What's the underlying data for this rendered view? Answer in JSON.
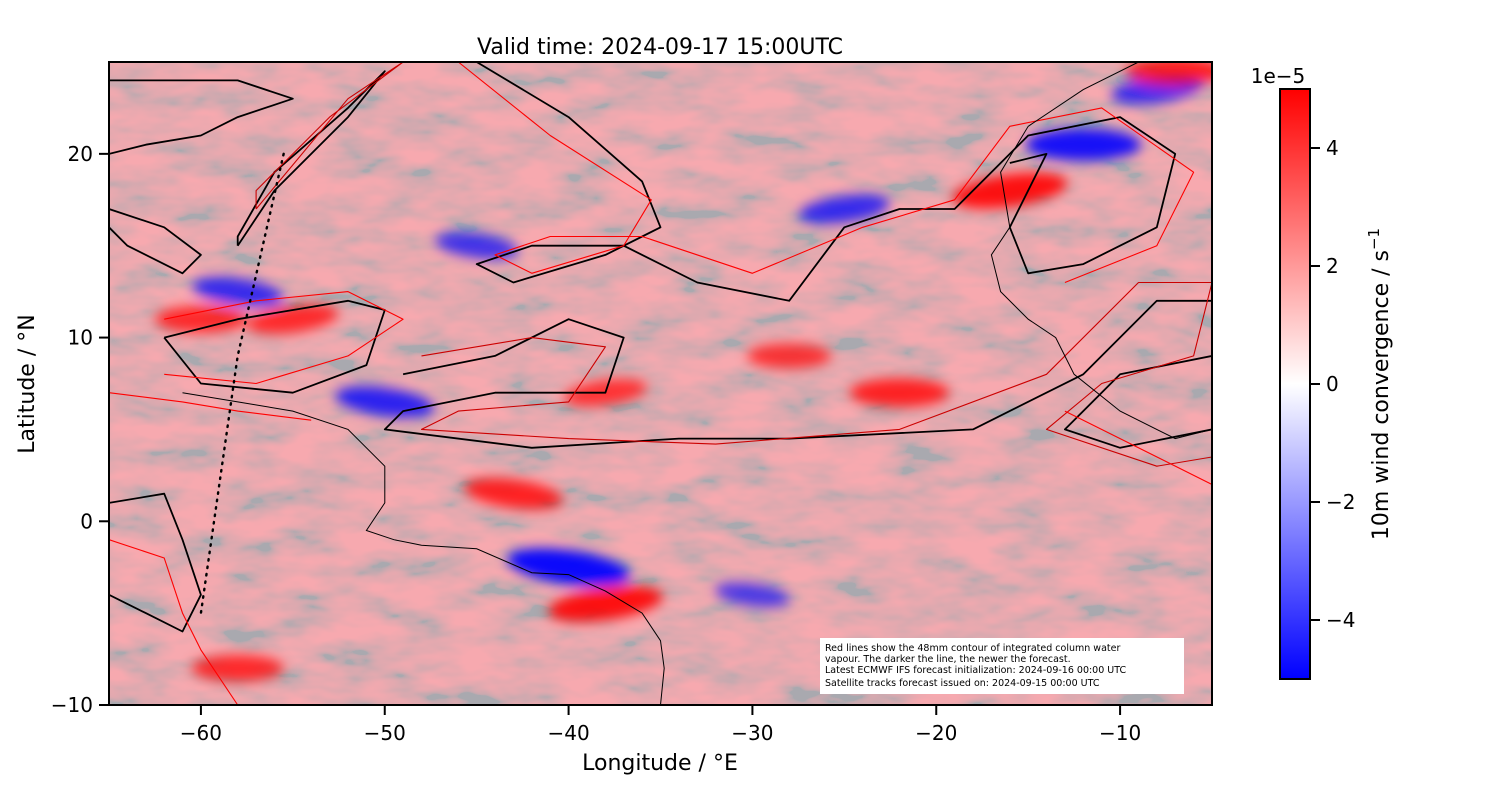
{
  "chart_data": {
    "type": "heatmap",
    "title": "Valid time: 2024-09-17 15:00UTC",
    "xlabel": "Longitude / °E",
    "ylabel": "Latitude / °N",
    "xlim": [
      -65,
      -5
    ],
    "ylim": [
      -10,
      25
    ],
    "x_ticks": [
      -60,
      -50,
      -40,
      -30,
      -20,
      -10
    ],
    "x_tick_labels": [
      "−60",
      "−50",
      "−40",
      "−30",
      "−20",
      "−10"
    ],
    "y_ticks": [
      -10,
      0,
      10,
      20
    ],
    "y_tick_labels": [
      "−10",
      "0",
      "10",
      "20"
    ],
    "colorbar": {
      "label_main": "10m wind convergence / s",
      "label_sup": "−1",
      "scale_label": "1e−5",
      "range": [
        -5,
        5
      ],
      "ticks": [
        -4,
        -2,
        0,
        2,
        4
      ],
      "tick_labels": [
        "−4",
        "−2",
        "0",
        "2",
        "4"
      ],
      "colors": {
        "low": "#0000ff",
        "mid": "#ffffff",
        "high": "#ff0000"
      }
    },
    "field_features": [
      {
        "type": "convergence",
        "lon": -16,
        "lat": 18,
        "value": 4.5
      },
      {
        "type": "divergence",
        "lon": -12,
        "lat": 20.5,
        "value": -4.5
      },
      {
        "type": "divergence",
        "lon": -40,
        "lat": -2.5,
        "value": -5
      },
      {
        "type": "convergence",
        "lon": -38,
        "lat": -4.5,
        "value": 4.5
      },
      {
        "type": "convergence",
        "lon": -22,
        "lat": 7,
        "value": 3.5
      },
      {
        "type": "divergence",
        "lon": -50,
        "lat": 6.5,
        "value": -3.5
      },
      {
        "type": "convergence",
        "lon": -55,
        "lat": 11,
        "value": 3
      },
      {
        "type": "convergence",
        "lon": -60,
        "lat": 11,
        "value": 3
      },
      {
        "type": "divergence",
        "lon": -58,
        "lat": 12.5,
        "value": -3
      },
      {
        "type": "convergence",
        "lon": -38,
        "lat": 7,
        "value": 2.5
      },
      {
        "type": "convergence",
        "lon": -28,
        "lat": 9,
        "value": 2.5
      },
      {
        "type": "divergence",
        "lon": -45,
        "lat": 15,
        "value": -2.5
      },
      {
        "type": "divergence",
        "lon": -8,
        "lat": 23.5,
        "value": -3
      },
      {
        "type": "convergence",
        "lon": -7,
        "lat": 24.5,
        "value": 3.5
      },
      {
        "type": "convergence",
        "lon": -43,
        "lat": 1.5,
        "value": 3.5
      },
      {
        "type": "divergence",
        "lon": -25,
        "lat": 17,
        "value": -3
      },
      {
        "type": "convergence",
        "lon": -58,
        "lat": -8,
        "value": 3
      },
      {
        "type": "divergence",
        "lon": -30,
        "lat": -4,
        "value": -2
      }
    ],
    "water_vapour_contours": [
      {
        "forecast": "latest",
        "color": "#000000",
        "path": [
          [
            -58,
            15
          ],
          [
            -56,
            18
          ],
          [
            -52,
            22
          ],
          [
            -50,
            24.5
          ],
          [
            -52,
            22.5
          ],
          [
            -56,
            19
          ],
          [
            -58,
            15.5
          ],
          [
            -58,
            15
          ]
        ]
      },
      {
        "forecast": "latest",
        "color": "#000000",
        "path": [
          [
            -45,
            25
          ],
          [
            -40,
            22
          ],
          [
            -36,
            18.5
          ],
          [
            -35,
            16
          ],
          [
            -38,
            14.5
          ],
          [
            -43,
            13
          ],
          [
            -45,
            14
          ],
          [
            -42,
            15
          ],
          [
            -37,
            15
          ],
          [
            -33,
            13
          ],
          [
            -28,
            12
          ],
          [
            -25,
            16
          ],
          [
            -22,
            17
          ],
          [
            -19,
            17
          ],
          [
            -15,
            21
          ],
          [
            -10,
            22
          ],
          [
            -7,
            20
          ],
          [
            -8,
            16
          ],
          [
            -12,
            14
          ],
          [
            -15,
            13.5
          ],
          [
            -16,
            16
          ],
          [
            -14,
            20
          ],
          [
            -16,
            19.5
          ]
        ]
      },
      {
        "forecast": "latest",
        "color": "#000000",
        "path": [
          [
            -62,
            10
          ],
          [
            -58,
            11
          ],
          [
            -52,
            12
          ],
          [
            -50,
            11.5
          ],
          [
            -51,
            8.5
          ],
          [
            -55,
            7
          ],
          [
            -60,
            7.5
          ],
          [
            -62,
            10
          ]
        ]
      },
      {
        "forecast": "latest",
        "color": "#000000",
        "path": [
          [
            -49,
            8
          ],
          [
            -44,
            9
          ],
          [
            -40,
            11
          ],
          [
            -37,
            10
          ],
          [
            -38,
            7
          ],
          [
            -44,
            7
          ],
          [
            -49,
            6
          ],
          [
            -50,
            5
          ],
          [
            -42,
            4
          ],
          [
            -34,
            4.5
          ],
          [
            -28,
            4.5
          ],
          [
            -18,
            5
          ],
          [
            -12,
            8
          ],
          [
            -8,
            12
          ],
          [
            -5,
            12
          ],
          [
            -5,
            9
          ],
          [
            -10,
            8
          ],
          [
            -13,
            5
          ],
          [
            -10,
            4
          ],
          [
            -5,
            5
          ]
        ]
      },
      {
        "forecast": "latest",
        "color": "#000000",
        "path": [
          [
            -65,
            24
          ],
          [
            -58,
            24
          ],
          [
            -55,
            23
          ],
          [
            -58,
            22
          ],
          [
            -60,
            21
          ],
          [
            -63,
            20.5
          ],
          [
            -65,
            20
          ]
        ]
      },
      {
        "forecast": "latest",
        "color": "#000000",
        "path": [
          [
            -65,
            17
          ],
          [
            -62,
            16
          ],
          [
            -60,
            14.5
          ],
          [
            -61,
            13.5
          ],
          [
            -64,
            15
          ],
          [
            -65,
            16
          ]
        ]
      },
      {
        "forecast": "latest",
        "color": "#000000",
        "path": [
          [
            -65,
            1
          ],
          [
            -62,
            1.5
          ],
          [
            -61,
            -1
          ],
          [
            -60,
            -4
          ],
          [
            -61,
            -6
          ],
          [
            -63,
            -5
          ],
          [
            -65,
            -4
          ]
        ]
      },
      {
        "forecast": "older",
        "color": "#cc0000",
        "path": [
          [
            -57,
            17
          ],
          [
            -52,
            23
          ],
          [
            -49,
            25
          ],
          [
            -53,
            22
          ],
          [
            -57,
            18
          ],
          [
            -57,
            17
          ]
        ]
      },
      {
        "forecast": "older",
        "color": "#ff0000",
        "path": [
          [
            -46,
            25
          ],
          [
            -41,
            21
          ],
          [
            -35.5,
            17.5
          ],
          [
            -37,
            15
          ],
          [
            -42,
            13.5
          ],
          [
            -44,
            14.5
          ],
          [
            -41,
            15.5
          ],
          [
            -36,
            15.5
          ],
          [
            -30,
            13.5
          ],
          [
            -24,
            16
          ],
          [
            -19,
            17.5
          ],
          [
            -16,
            21.5
          ],
          [
            -11,
            22.5
          ],
          [
            -6,
            19
          ],
          [
            -8,
            15
          ],
          [
            -13,
            13
          ]
        ]
      },
      {
        "forecast": "older",
        "color": "#ff0000",
        "path": [
          [
            -62,
            11
          ],
          [
            -57,
            12
          ],
          [
            -52,
            12.5
          ],
          [
            -49,
            11
          ],
          [
            -52,
            9
          ],
          [
            -57,
            7.5
          ],
          [
            -62,
            8
          ]
        ]
      },
      {
        "forecast": "older",
        "color": "#cc0000",
        "path": [
          [
            -48,
            9
          ],
          [
            -42,
            10
          ],
          [
            -38,
            9.5
          ],
          [
            -40,
            6.5
          ],
          [
            -46,
            6
          ],
          [
            -48,
            5
          ],
          [
            -40,
            4.5
          ],
          [
            -32,
            4.2
          ],
          [
            -22,
            5
          ],
          [
            -14,
            8
          ],
          [
            -9,
            13
          ],
          [
            -5,
            13
          ],
          [
            -6,
            9
          ],
          [
            -11,
            7.5
          ],
          [
            -14,
            5
          ],
          [
            -8,
            3
          ],
          [
            -5,
            3.5
          ]
        ]
      },
      {
        "forecast": "older",
        "color": "#ff0000",
        "path": [
          [
            -13,
            6
          ],
          [
            -10,
            4.5
          ],
          [
            -5,
            2
          ]
        ]
      },
      {
        "forecast": "older",
        "color": "#ff0000",
        "path": [
          [
            -65,
            7
          ],
          [
            -61,
            6.5
          ],
          [
            -58,
            6
          ],
          [
            -54,
            5.5
          ]
        ]
      },
      {
        "forecast": "older",
        "color": "#ff0000",
        "path": [
          [
            -65,
            -1
          ],
          [
            -62,
            -2
          ],
          [
            -61,
            -5
          ],
          [
            -60,
            -7
          ],
          [
            -58,
            -10
          ]
        ]
      }
    ],
    "coastline": [
      {
        "name": "south-america-north-coast",
        "path": [
          [
            -61,
            7
          ],
          [
            -58,
            6.5
          ],
          [
            -55,
            6
          ],
          [
            -52,
            5
          ],
          [
            -50,
            3
          ],
          [
            -50,
            1
          ],
          [
            -51,
            -0.5
          ],
          [
            -49.5,
            -1
          ],
          [
            -48,
            -1.3
          ],
          [
            -45,
            -1.5
          ],
          [
            -42,
            -2.8
          ],
          [
            -40,
            -2.9
          ],
          [
            -38,
            -3.8
          ],
          [
            -36,
            -5
          ],
          [
            -35,
            -6.5
          ],
          [
            -34.8,
            -8
          ],
          [
            -35,
            -10
          ]
        ]
      },
      {
        "name": "west-africa-coast",
        "path": [
          [
            -9,
            25
          ],
          [
            -12,
            23.5
          ],
          [
            -15,
            21.5
          ],
          [
            -16.5,
            19
          ],
          [
            -16,
            16
          ],
          [
            -17,
            14.5
          ],
          [
            -16.5,
            12.5
          ],
          [
            -15,
            11
          ],
          [
            -13.5,
            10
          ],
          [
            -12.5,
            8
          ],
          [
            -10,
            6
          ],
          [
            -7,
            4.5
          ],
          [
            -5,
            5
          ]
        ]
      }
    ],
    "satellite_track": {
      "style": "dotted",
      "color": "#000000",
      "path": [
        [
          -55.5,
          20
        ],
        [
          -58,
          9
        ],
        [
          -60,
          -5
        ]
      ]
    },
    "annotation_lines": [
      "Red lines show the 48mm contour of integrated column water",
      "vapour. The darker the line, the newer the forecast.",
      "Latest ECMWF IFS forecast initialization: 2024-09-16 00:00 UTC",
      "Satellite tracks forecast issued on: 2024-09-15 00:00 UTC"
    ]
  }
}
